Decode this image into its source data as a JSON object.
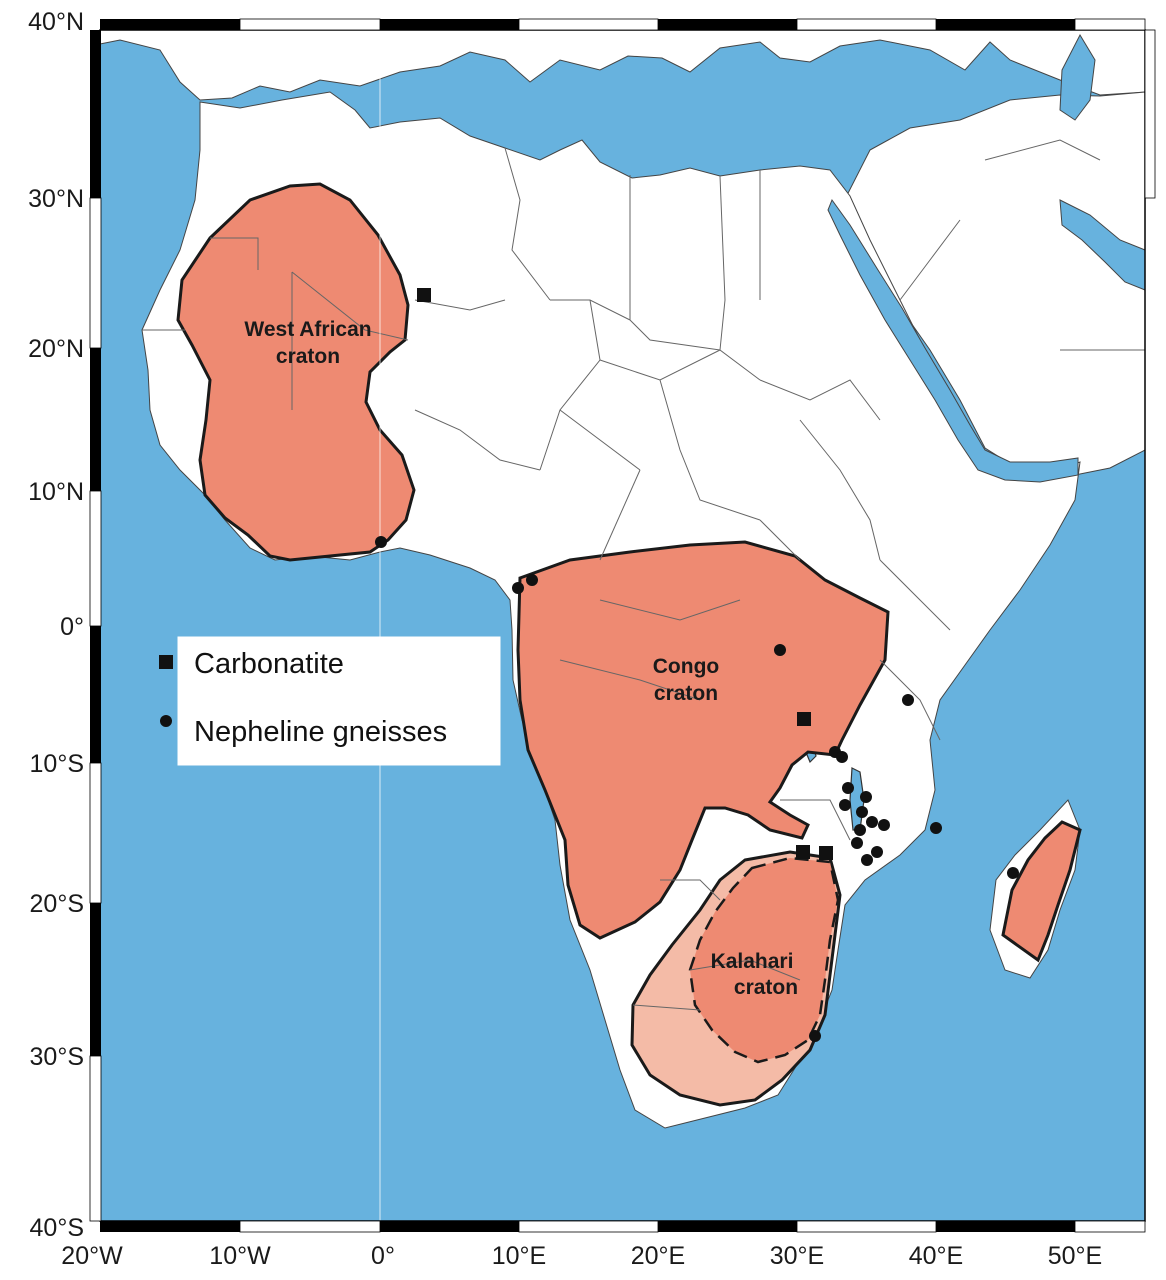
{
  "map": {
    "lat_labels": [
      "40°N",
      "30°N",
      "20°N",
      "10°N",
      "0°",
      "10°S",
      "20°S",
      "30°S",
      "40°S"
    ],
    "lon_labels": [
      "20°W",
      "10°W",
      "0°",
      "10°E",
      "20°E",
      "30°E",
      "40°E",
      "50°E"
    ],
    "cratons": [
      {
        "line1": "West African",
        "line2": "craton"
      },
      {
        "line1": "Congo",
        "line2": "craton"
      },
      {
        "line1": "Kalahari",
        "line2": "craton"
      }
    ],
    "legend": {
      "carbonatite": "Carbonatite",
      "nepheline": "Nepheline gneisses"
    },
    "colors": {
      "ocean": "#67b2de",
      "land": "#ffffff",
      "craton": "#ee8a72",
      "craton_light": "#f4bba7",
      "outline": "#1a1a1a"
    }
  }
}
